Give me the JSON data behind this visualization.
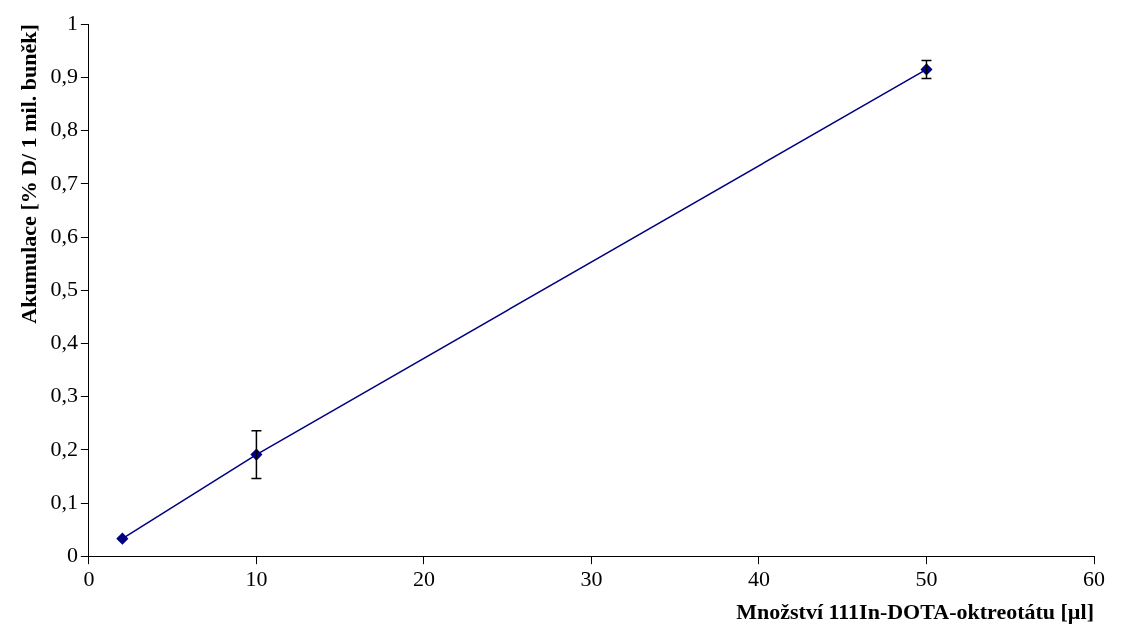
{
  "chart_data": {
    "type": "line",
    "xlabel": "Množství 111In-DOTA-oktreotátu [µl]",
    "ylabel": "Akumulace [% D/ 1 mil. buněk]",
    "x": [
      2,
      10,
      50
    ],
    "series": [
      {
        "color": "#000080",
        "values": [
          0.033,
          0.191,
          0.915
        ],
        "errors": [
          null,
          0.045,
          0.017
        ]
      }
    ],
    "xlim": [
      0,
      60
    ],
    "xticks": [
      0,
      10,
      20,
      30,
      40,
      50,
      60
    ],
    "ylim": [
      0,
      1
    ],
    "yticks": [
      {
        "value": 0,
        "label": "0"
      },
      {
        "value": 0.1,
        "label": "0,1"
      },
      {
        "value": 0.2,
        "label": "0,2"
      },
      {
        "value": 0.3,
        "label": "0,3"
      },
      {
        "value": 0.4,
        "label": "0,4"
      },
      {
        "value": 0.5,
        "label": "0,5"
      },
      {
        "value": 0.6,
        "label": "0,6"
      },
      {
        "value": 0.7,
        "label": "0,7"
      },
      {
        "value": 0.8,
        "label": "0,8"
      },
      {
        "value": 0.9,
        "label": "0,9"
      },
      {
        "value": 1,
        "label": "1"
      }
    ],
    "grid": false,
    "legend": false,
    "marker": "diamond",
    "line_style": "solid"
  }
}
